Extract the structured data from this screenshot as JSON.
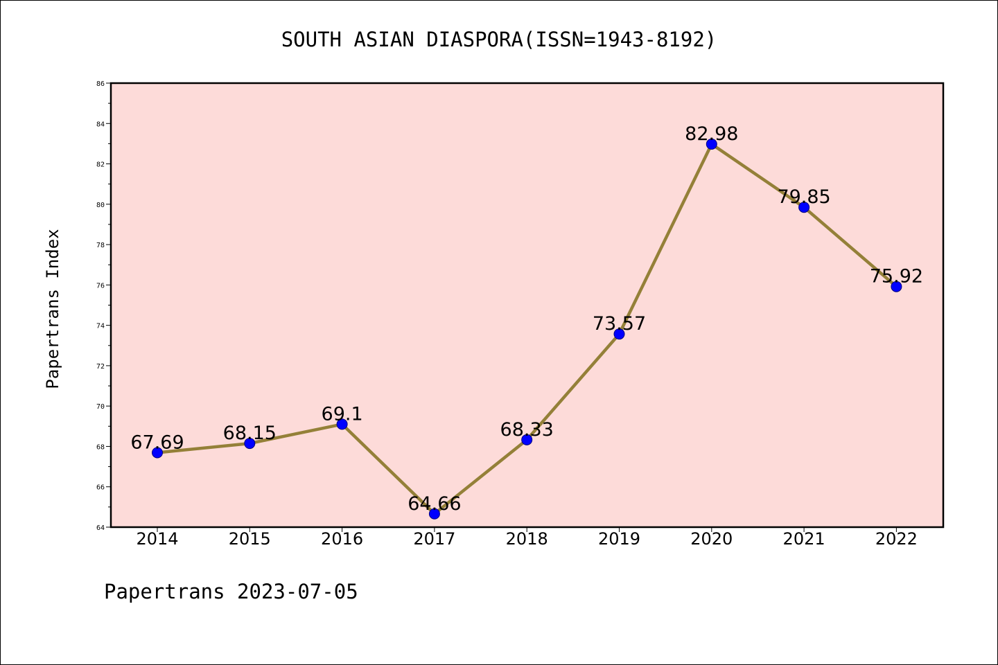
{
  "chart_data": {
    "type": "line",
    "title": "SOUTH ASIAN DIASPORA(ISSN=1943-8192)",
    "ylabel": "Papertrans Index",
    "xlabel": "",
    "footer": "Papertrans 2023-07-05",
    "categories": [
      "2014",
      "2015",
      "2016",
      "2017",
      "2018",
      "2019",
      "2020",
      "2021",
      "2022"
    ],
    "series": [
      {
        "values": [
          67.69,
          68.15,
          69.1,
          64.66,
          68.33,
          73.57,
          82.98,
          79.85,
          75.92
        ],
        "labels": [
          "67.69",
          "68.15",
          "69.1",
          "64.66",
          "68.33",
          "73.57",
          "82.98",
          "79.85",
          "75.92"
        ]
      }
    ],
    "ylim": [
      64,
      86
    ],
    "yticks": [
      "64",
      "66",
      "68",
      "70",
      "72",
      "74",
      "76",
      "78",
      "80",
      "82",
      "84",
      "86"
    ],
    "grid": false,
    "colors": {
      "plot_background": "#fddbd9",
      "line": "#948038",
      "marker_fill": "#0000ff",
      "marker_edge": "#000080"
    }
  }
}
